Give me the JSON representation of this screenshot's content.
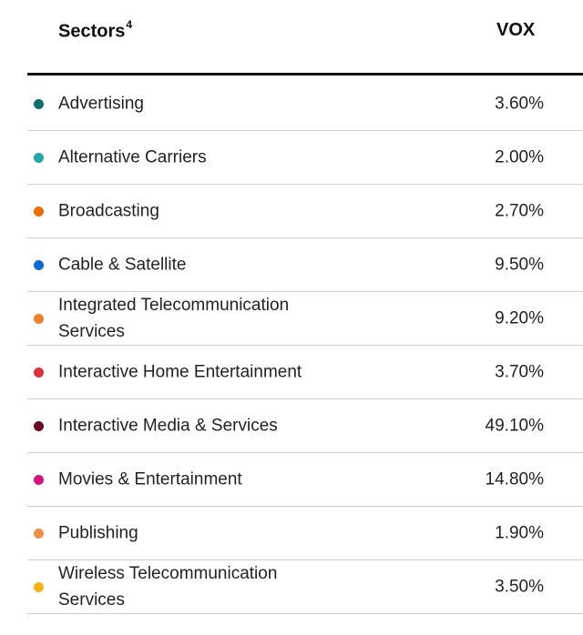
{
  "header": {
    "sectors_label": "Sectors",
    "sectors_footnote": "4",
    "fund_label": "VOX"
  },
  "rows": [
    {
      "label": "Advertising",
      "value": "3.60%",
      "color": "#0d6e6e"
    },
    {
      "label": "Alternative Carriers",
      "value": "2.00%",
      "color": "#22a8a4"
    },
    {
      "label": "Broadcasting",
      "value": "2.70%",
      "color": "#ef6c00"
    },
    {
      "label": "Cable & Satellite",
      "value": "9.50%",
      "color": "#0a6bd6"
    },
    {
      "label": "Integrated Telecommunication Services",
      "value": "9.20%",
      "color": "#f07f2e"
    },
    {
      "label": "Interactive Home Entertainment",
      "value": "3.70%",
      "color": "#e0303c"
    },
    {
      "label": "Interactive Media & Services",
      "value": "49.10%",
      "color": "#6b0b25"
    },
    {
      "label": "Movies & Entertainment",
      "value": "14.80%",
      "color": "#d6127f"
    },
    {
      "label": "Publishing",
      "value": "1.90%",
      "color": "#f0904a"
    },
    {
      "label": "Wireless Telecommunication Services",
      "value": "3.50%",
      "color": "#f7b313"
    }
  ]
}
